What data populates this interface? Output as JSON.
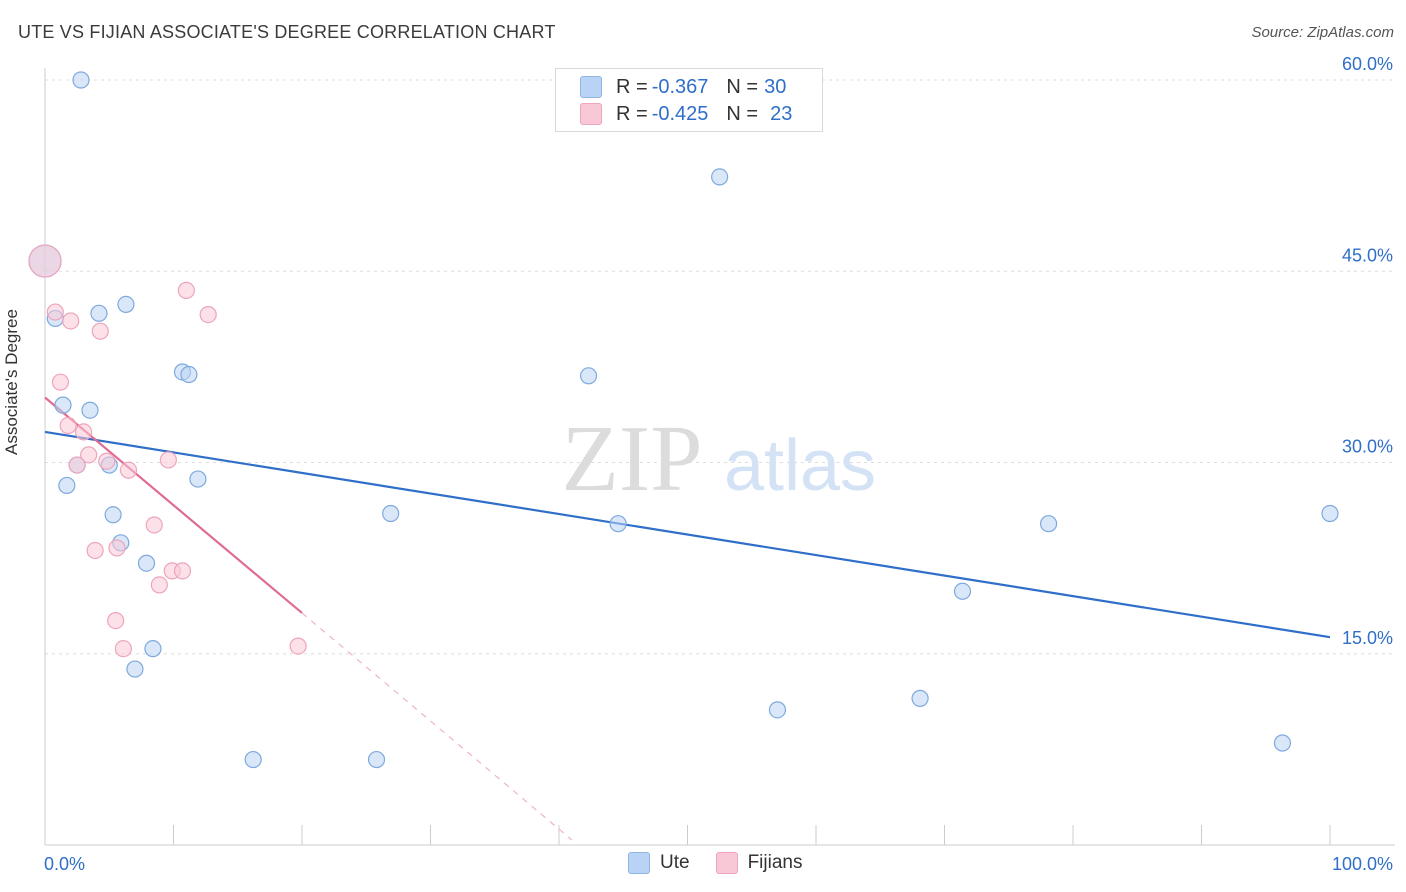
{
  "title": "UTE VS FIJIAN ASSOCIATE'S DEGREE CORRELATION CHART",
  "source": "Source: ZipAtlas.com",
  "legend": {
    "rows": [
      {
        "r_label": "R = ",
        "r_value": "-0.367",
        "n_label": "N = ",
        "n_value": "30"
      },
      {
        "r_label": "R = ",
        "r_value": "-0.425",
        "n_label": "N = ",
        "n_value": "23"
      }
    ]
  },
  "bottom_legend": [
    "Ute",
    "Fijians"
  ],
  "watermark": {
    "zip": "ZIP",
    "atlas": "atlas"
  },
  "chart_data": {
    "type": "scatter",
    "title": "UTE VS FIJIAN ASSOCIATE'S DEGREE CORRELATION CHART",
    "xlabel": "",
    "ylabel": "Associate's Degree",
    "xlim": [
      0,
      100
    ],
    "ylim": [
      0,
      60
    ],
    "x_tick_labels": [
      "0.0%",
      "100.0%"
    ],
    "y_ticks": [
      15,
      30,
      45,
      60
    ],
    "y_tick_labels": [
      "15.0%",
      "30.0%",
      "45.0%",
      "60.0%"
    ],
    "grid": true,
    "legend_position": "top-center",
    "colors": {
      "ute": "#2f6fc9",
      "fijians": "#e06c93",
      "ute_fill": "#b9d3f4",
      "fijians_fill": "#f9c8d6"
    },
    "series": [
      {
        "name": "Ute",
        "points": [
          [
            2.8,
            60.0
          ],
          [
            0.0,
            45.8
          ],
          [
            0.8,
            41.3
          ],
          [
            4.2,
            41.7
          ],
          [
            6.3,
            42.4
          ],
          [
            1.4,
            34.5
          ],
          [
            3.5,
            34.1
          ],
          [
            10.7,
            37.1
          ],
          [
            11.2,
            36.9
          ],
          [
            2.5,
            29.8
          ],
          [
            5.0,
            29.8
          ],
          [
            1.7,
            28.2
          ],
          [
            11.9,
            28.7
          ],
          [
            5.3,
            25.9
          ],
          [
            5.9,
            23.7
          ],
          [
            7.9,
            22.1
          ],
          [
            8.4,
            15.4
          ],
          [
            7.0,
            13.8
          ],
          [
            16.2,
            6.7
          ],
          [
            25.8,
            6.7
          ],
          [
            26.9,
            26.0
          ],
          [
            42.3,
            36.8
          ],
          [
            44.6,
            25.2
          ],
          [
            52.5,
            52.4
          ],
          [
            57.0,
            10.6
          ],
          [
            68.1,
            11.5
          ],
          [
            71.4,
            19.9
          ],
          [
            78.1,
            25.2
          ],
          [
            96.3,
            8.0
          ],
          [
            100.0,
            26.0
          ]
        ],
        "trend": {
          "x": [
            0,
            100
          ],
          "y": [
            32.4,
            16.3
          ]
        }
      },
      {
        "name": "Fijians",
        "points": [
          [
            0.0,
            45.8
          ],
          [
            0.8,
            41.8
          ],
          [
            2.0,
            41.1
          ],
          [
            4.3,
            40.3
          ],
          [
            11.0,
            43.5
          ],
          [
            12.7,
            41.6
          ],
          [
            1.2,
            36.3
          ],
          [
            1.8,
            32.9
          ],
          [
            3.0,
            32.4
          ],
          [
            3.4,
            30.6
          ],
          [
            2.5,
            29.8
          ],
          [
            4.8,
            30.1
          ],
          [
            6.5,
            29.4
          ],
          [
            9.6,
            30.2
          ],
          [
            8.5,
            25.1
          ],
          [
            3.9,
            23.1
          ],
          [
            5.6,
            23.3
          ],
          [
            9.9,
            21.5
          ],
          [
            10.7,
            21.5
          ],
          [
            8.9,
            20.4
          ],
          [
            5.5,
            17.6
          ],
          [
            6.1,
            15.4
          ],
          [
            19.7,
            15.6
          ]
        ],
        "trend": {
          "x": [
            0,
            20
          ],
          "y": [
            35.1,
            18.2
          ]
        },
        "trend_extension": {
          "x": [
            20,
            41
          ],
          "y": [
            18.2,
            0.4
          ]
        }
      }
    ]
  }
}
